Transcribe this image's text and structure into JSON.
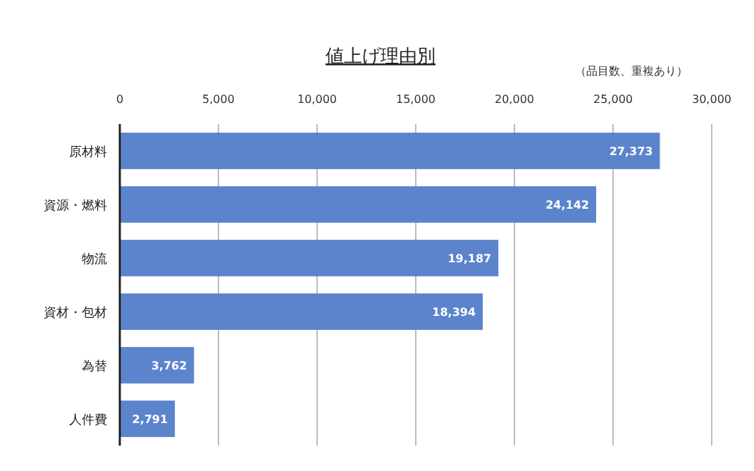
{
  "chart_data": {
    "type": "bar",
    "orientation": "horizontal",
    "title": "値上げ理由別",
    "subtitle": "（品目数、重複あり）",
    "categories": [
      "原材料",
      "資源・燃料",
      "物流",
      "資材・包材",
      "為替",
      "人件費"
    ],
    "values": [
      27373,
      24142,
      19187,
      18394,
      3762,
      2791
    ],
    "color": "#5b84cc",
    "xlim": [
      0,
      30000
    ],
    "xticks": [
      0,
      {
        "value": 5000,
        "label": "5,000"
      },
      {
        "value": 10000,
        "label": "10,000"
      },
      {
        "value": 15000,
        "label": "15,000"
      },
      {
        "value": 20000,
        "label": "20,000"
      },
      {
        "value": 25000,
        "label": "25,000"
      },
      {
        "value": 30000,
        "label": "30,000"
      }
    ],
    "value_labels": [
      "27,373",
      "24,142",
      "19,187",
      "18,394",
      "3,762",
      "2,791"
    ],
    "grid": "x"
  }
}
